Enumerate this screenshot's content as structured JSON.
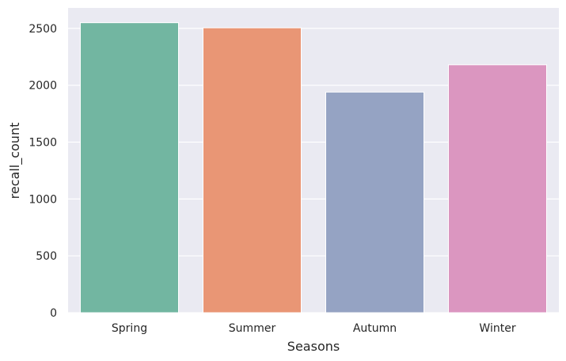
{
  "chart_data": {
    "type": "bar",
    "categories": [
      "Spring",
      "Summer",
      "Autumn",
      "Winter"
    ],
    "values": [
      2550,
      2505,
      1940,
      2180
    ],
    "xlabel": "Seasons",
    "ylabel": "recall_count",
    "ylim": [
      0,
      2680
    ],
    "yticks": [
      0,
      500,
      1000,
      1500,
      2000,
      2500
    ],
    "grid": true,
    "legend": "none",
    "colors": [
      "#72b6a1",
      "#e99675",
      "#95a3c3",
      "#db96c0"
    ],
    "background": "#eaeaf2"
  }
}
